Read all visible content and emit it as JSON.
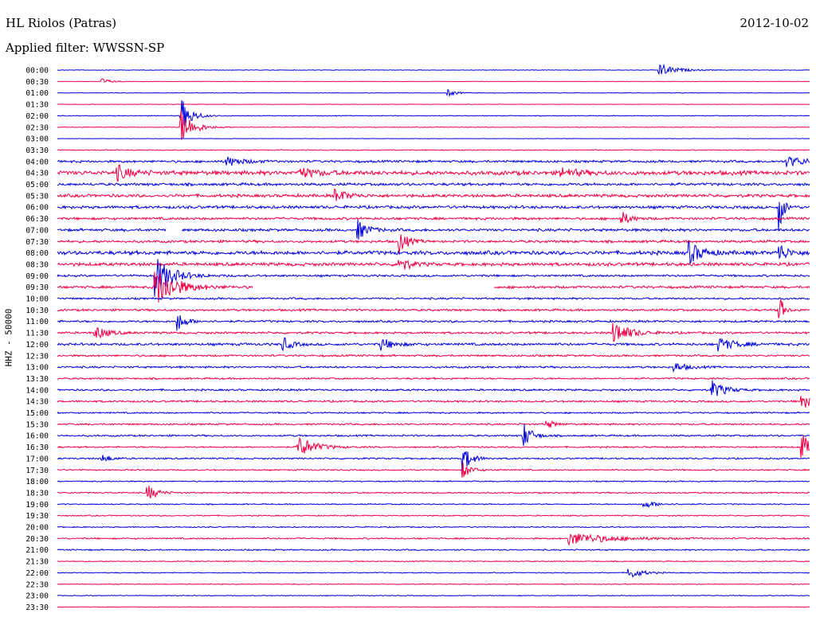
{
  "header": {
    "station": "HL Riolos (Patras)",
    "date": "2012-10-02",
    "filter": "Applied filter: WWSSN-SP"
  },
  "chart_data": {
    "type": "line",
    "title": "HL Riolos (Patras)",
    "subtitle": "Applied filter: WWSSN-SP",
    "ylabel": "HHZ - 50000",
    "xlabel": "",
    "trace_colors": [
      "#0000dd",
      "#ee0044"
    ],
    "rows": [
      "00:00",
      "00:30",
      "01:00",
      "01:30",
      "02:00",
      "02:30",
      "03:00",
      "03:30",
      "04:00",
      "04:30",
      "05:00",
      "05:30",
      "06:00",
      "06:30",
      "07:00",
      "07:30",
      "08:00",
      "08:30",
      "09:00",
      "09:30",
      "10:00",
      "10:30",
      "11:00",
      "11:30",
      "12:00",
      "12:30",
      "13:00",
      "13:30",
      "14:00",
      "14:30",
      "15:00",
      "15:30",
      "16:00",
      "16:30",
      "17:00",
      "17:30",
      "18:00",
      "18:30",
      "19:00",
      "19:30",
      "20:00",
      "20:30",
      "21:00",
      "21:30",
      "22:00",
      "22:30",
      "23:00",
      "23:30"
    ],
    "noise_level": [
      0.3,
      0.2,
      0.3,
      0.2,
      0.4,
      0.3,
      0.2,
      0.5,
      1.2,
      2.2,
      1.4,
      1.6,
      1.5,
      1.3,
      1.4,
      1.3,
      2.0,
      1.7,
      1.1,
      1.3,
      1.0,
      1.1,
      1.1,
      1.1,
      1.3,
      1.0,
      1.0,
      0.9,
      1.0,
      1.0,
      0.8,
      0.9,
      0.9,
      0.8,
      0.8,
      0.7,
      0.6,
      0.7,
      0.6,
      0.6,
      0.6,
      0.8,
      0.7,
      0.5,
      0.5,
      0.4,
      0.4,
      0.3
    ],
    "events": [
      {
        "row": 0,
        "x": 0.8,
        "amp": 8,
        "dur": 0.02
      },
      {
        "row": 1,
        "x": 0.06,
        "amp": 4,
        "dur": 0.01
      },
      {
        "row": 2,
        "x": 0.52,
        "amp": 4,
        "dur": 0.01
      },
      {
        "row": 4,
        "x": 0.165,
        "amp": 22,
        "dur": 0.012
      },
      {
        "row": 5,
        "x": 0.165,
        "amp": 22,
        "dur": 0.015
      },
      {
        "row": 8,
        "x": 0.225,
        "amp": 6,
        "dur": 0.02
      },
      {
        "row": 8,
        "x": 0.97,
        "amp": 6,
        "dur": 0.03
      },
      {
        "row": 9,
        "x": 0.08,
        "amp": 9,
        "dur": 0.015
      },
      {
        "row": 9,
        "x": 0.32,
        "amp": 7,
        "dur": 0.02
      },
      {
        "row": 9,
        "x": 0.67,
        "amp": 6,
        "dur": 0.02
      },
      {
        "row": 11,
        "x": 0.37,
        "amp": 8,
        "dur": 0.015
      },
      {
        "row": 12,
        "x": 0.96,
        "amp": 30,
        "dur": 0.005
      },
      {
        "row": 13,
        "x": 0.75,
        "amp": 9,
        "dur": 0.01
      },
      {
        "row": 14,
        "x": 0.4,
        "amp": 12,
        "dur": 0.012
      },
      {
        "row": 15,
        "x": 0.455,
        "amp": 14,
        "dur": 0.01
      },
      {
        "row": 16,
        "x": 0.84,
        "amp": 14,
        "dur": 0.015
      },
      {
        "row": 16,
        "x": 0.96,
        "amp": 12,
        "dur": 0.01
      },
      {
        "row": 17,
        "x": 0.455,
        "amp": 12,
        "dur": 0.01
      },
      {
        "row": 18,
        "x": 0.13,
        "amp": 26,
        "dur": 0.02
      },
      {
        "row": 19,
        "x": 0.13,
        "amp": 26,
        "dur": 0.025
      },
      {
        "row": 21,
        "x": 0.96,
        "amp": 20,
        "dur": 0.005
      },
      {
        "row": 22,
        "x": 0.16,
        "amp": 12,
        "dur": 0.01
      },
      {
        "row": 23,
        "x": 0.05,
        "amp": 9,
        "dur": 0.015
      },
      {
        "row": 23,
        "x": 0.74,
        "amp": 14,
        "dur": 0.02
      },
      {
        "row": 24,
        "x": 0.3,
        "amp": 9,
        "dur": 0.01
      },
      {
        "row": 24,
        "x": 0.43,
        "amp": 8,
        "dur": 0.015
      },
      {
        "row": 24,
        "x": 0.88,
        "amp": 8,
        "dur": 0.02
      },
      {
        "row": 26,
        "x": 0.82,
        "amp": 6,
        "dur": 0.015
      },
      {
        "row": 28,
        "x": 0.87,
        "amp": 12,
        "dur": 0.015
      },
      {
        "row": 29,
        "x": 0.99,
        "amp": 12,
        "dur": 0.01
      },
      {
        "row": 31,
        "x": 0.65,
        "amp": 6,
        "dur": 0.01
      },
      {
        "row": 32,
        "x": 0.62,
        "amp": 16,
        "dur": 0.01
      },
      {
        "row": 33,
        "x": 0.32,
        "amp": 14,
        "dur": 0.02
      },
      {
        "row": 33,
        "x": 0.99,
        "amp": 18,
        "dur": 0.01
      },
      {
        "row": 34,
        "x": 0.54,
        "amp": 16,
        "dur": 0.01
      },
      {
        "row": 34,
        "x": 0.06,
        "amp": 6,
        "dur": 0.01
      },
      {
        "row": 35,
        "x": 0.54,
        "amp": 10,
        "dur": 0.01
      },
      {
        "row": 37,
        "x": 0.12,
        "amp": 10,
        "dur": 0.012
      },
      {
        "row": 38,
        "x": 0.78,
        "amp": 5,
        "dur": 0.015
      },
      {
        "row": 41,
        "x": 0.68,
        "amp": 8,
        "dur": 0.05
      },
      {
        "row": 44,
        "x": 0.76,
        "amp": 8,
        "dur": 0.015
      }
    ],
    "gaps": [
      {
        "row": 14,
        "from": 0.145,
        "to": 0.165
      },
      {
        "row": 19,
        "from": 0.26,
        "to": 0.58
      }
    ]
  }
}
